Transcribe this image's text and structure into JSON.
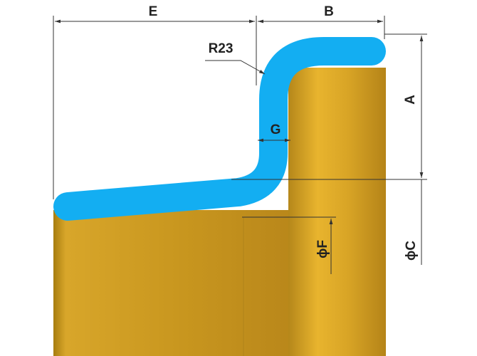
{
  "dimensions": {
    "e": "E",
    "b": "B",
    "radius": "R23",
    "g": "G",
    "a": "A",
    "f": "ϕF",
    "c": "ϕC"
  }
}
